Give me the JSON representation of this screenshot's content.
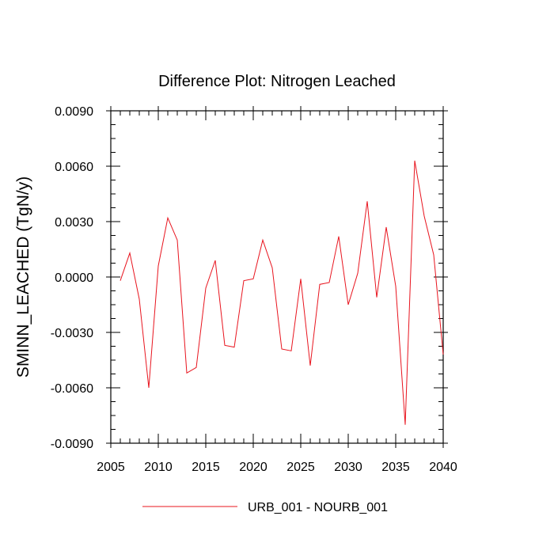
{
  "chart_data": {
    "type": "line",
    "title": "Difference Plot: Nitrogen Leached",
    "xlabel": "",
    "ylabel": "SMINN_LEACHED  (TgN/y)",
    "xlim": [
      2005,
      2040
    ],
    "ylim": [
      -0.009,
      0.009
    ],
    "xticks": [
      2005,
      2010,
      2015,
      2020,
      2025,
      2030,
      2035,
      2040
    ],
    "xtick_labels": [
      "2005",
      "2010",
      "2015",
      "2020",
      "2025",
      "2030",
      "2035",
      "2040"
    ],
    "yticks": [
      -0.009,
      -0.006,
      -0.003,
      0.0,
      0.003,
      0.006,
      0.009
    ],
    "ytick_labels": [
      "-0.0090",
      "-0.0060",
      "-0.0030",
      "0.0000",
      "0.0030",
      "0.0060",
      "0.0090"
    ],
    "grid": false,
    "legend_position": "bottom-center",
    "series": [
      {
        "name": "URB_001 - NOURB_001",
        "color": "#e8141e",
        "x": [
          2006,
          2007,
          2008,
          2009,
          2010,
          2011,
          2012,
          2013,
          2014,
          2015,
          2016,
          2017,
          2018,
          2019,
          2020,
          2021,
          2022,
          2023,
          2024,
          2025,
          2026,
          2027,
          2028,
          2029,
          2030,
          2031,
          2032,
          2033,
          2034,
          2035,
          2036,
          2037,
          2038,
          2039,
          2040
        ],
        "values": [
          -0.0002,
          0.0013,
          -0.0012,
          -0.006,
          0.0006,
          0.0032,
          0.002,
          -0.0052,
          -0.0049,
          -0.0006,
          0.0009,
          -0.0037,
          -0.0038,
          -0.0002,
          -0.0001,
          0.002,
          0.0005,
          -0.0039,
          -0.004,
          -0.0001,
          -0.0048,
          -0.0004,
          -0.0003,
          0.0022,
          -0.0015,
          0.0002,
          0.0041,
          -0.0011,
          0.0027,
          -0.0005,
          -0.008,
          0.0063,
          0.0033,
          0.0012,
          -0.0042
        ]
      }
    ]
  }
}
